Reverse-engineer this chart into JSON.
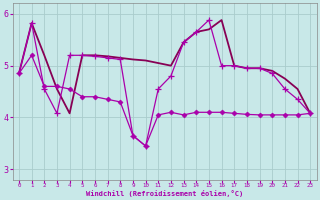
{
  "background_color": "#c8e8e8",
  "grid_color": "#aacccc",
  "line_color1": "#aa00aa",
  "line_color2": "#880088",
  "line_color3": "#cc44cc",
  "xlabel": "Windchill (Refroidissement éolien,°C)",
  "xlim": [
    -0.5,
    23.5
  ],
  "ylim": [
    2.8,
    6.2
  ],
  "yticks": [
    3,
    4,
    5,
    6
  ],
  "xticks": [
    0,
    1,
    2,
    3,
    4,
    5,
    6,
    7,
    8,
    9,
    10,
    11,
    12,
    13,
    14,
    15,
    16,
    17,
    18,
    19,
    20,
    21,
    22,
    23
  ],
  "s1_x": [
    0,
    1,
    2,
    3,
    4,
    5,
    6,
    7,
    8,
    9,
    10,
    11,
    12,
    13,
    14,
    15,
    16,
    17,
    18,
    19,
    20,
    21,
    22,
    23
  ],
  "s1_y": [
    4.85,
    5.82,
    5.2,
    4.55,
    4.08,
    5.2,
    5.2,
    5.18,
    5.15,
    5.12,
    5.1,
    5.05,
    5.0,
    5.45,
    5.65,
    5.7,
    5.88,
    5.0,
    4.95,
    4.95,
    4.9,
    4.75,
    4.55,
    4.08
  ],
  "s2_x": [
    0,
    1,
    2,
    3,
    4,
    5,
    6,
    7,
    8,
    9,
    10,
    11,
    12,
    13,
    14,
    15,
    16,
    17,
    18,
    19,
    20,
    21,
    22,
    23
  ],
  "s2_y": [
    4.85,
    5.2,
    4.6,
    4.6,
    4.55,
    4.4,
    4.4,
    4.35,
    4.3,
    3.65,
    3.45,
    4.05,
    4.1,
    4.05,
    4.1,
    4.1,
    4.1,
    4.08,
    4.06,
    4.05,
    4.05,
    4.05,
    4.05,
    4.08
  ],
  "s3_x": [
    0,
    1,
    2,
    3,
    4,
    5,
    6,
    7,
    8,
    9,
    10,
    11,
    12,
    13,
    14,
    15,
    16,
    17,
    18,
    19,
    20,
    21,
    22,
    23
  ],
  "s3_y": [
    4.85,
    5.82,
    4.55,
    4.08,
    5.2,
    5.2,
    5.18,
    5.15,
    5.12,
    3.65,
    3.45,
    4.55,
    4.8,
    5.45,
    5.65,
    5.88,
    5.0,
    5.0,
    4.95,
    4.95,
    4.85,
    4.55,
    4.35,
    4.08
  ]
}
